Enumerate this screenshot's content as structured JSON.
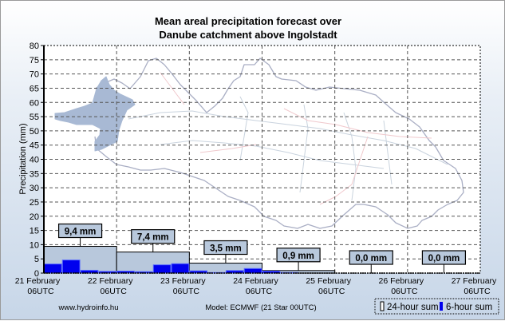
{
  "chart_data": {
    "type": "bar",
    "title": [
      "Mean areal precipitation forecast over",
      "Danube catchment above Ingolstadt"
    ],
    "xlabel": "",
    "ylabel": "Precipitation (mm)",
    "ylim": [
      0,
      80
    ],
    "yticks": [
      0,
      5,
      10,
      15,
      20,
      25,
      30,
      35,
      40,
      45,
      50,
      55,
      60,
      65,
      70,
      75,
      80
    ],
    "grid": true,
    "categories": [
      [
        "21 February",
        "06UTC"
      ],
      [
        "22 February",
        "06UTC"
      ],
      [
        "23 February",
        "06UTC"
      ],
      [
        "24 February",
        "06UTC"
      ],
      [
        "25 February",
        "06UTC"
      ],
      [
        "26 February",
        "06UTC"
      ],
      [
        "27 February",
        "06UTC"
      ]
    ],
    "series": [
      {
        "name": "24-hour sum",
        "color": "#b8c8dc",
        "values": [
          9.4,
          7.4,
          3.5,
          0.9,
          0.0,
          0.0
        ],
        "labels": [
          "9,4 mm",
          "7,4 mm",
          "3,5 mm",
          "0,9 mm",
          "0,0 mm",
          "0,0 mm"
        ]
      },
      {
        "name": "6-hour sum",
        "color": "#0000ee",
        "values": [
          3.2,
          4.6,
          1.0,
          0.6,
          0.7,
          0.5,
          2.9,
          3.3,
          0.8,
          0.2,
          0.9,
          1.6,
          0.7,
          0.2,
          0.0,
          0.0,
          0,
          0,
          0,
          0,
          0,
          0,
          0,
          0
        ]
      }
    ],
    "legend": {
      "position": "bottom-right",
      "entries": [
        "24-hour sum",
        "6-hour sum"
      ]
    },
    "annotations": {
      "source": "www.hydroinfo.hu",
      "model": "Model: ECMWF (21  Star 00UTC)"
    },
    "background": "catchment map of the Danube basin with sub-catchment above Ingolstadt highlighted"
  }
}
